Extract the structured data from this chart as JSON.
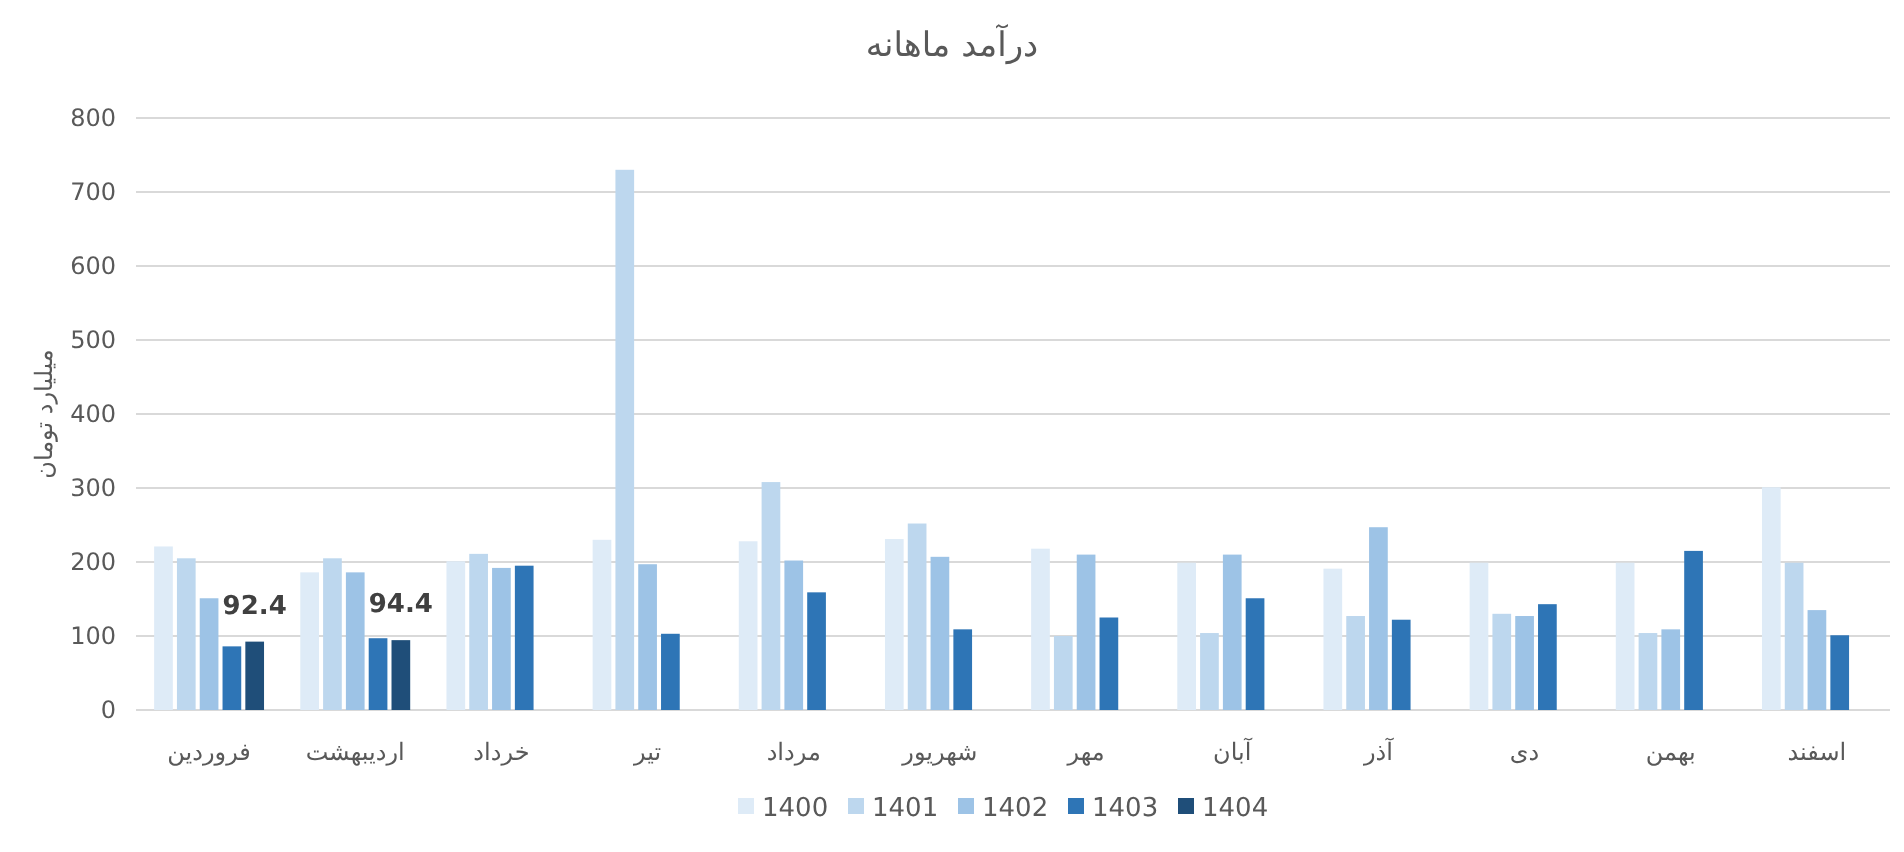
{
  "chart_data": {
    "type": "bar",
    "title": "درآمد ماهانه",
    "ylabel": "میلیارد تومان",
    "categories": [
      "فروردین",
      "اردیبهشت",
      "خرداد",
      "تیر",
      "مرداد",
      "شهریور",
      "مهر",
      "آبان",
      "آذر",
      "دی",
      "بهمن",
      "اسفند"
    ],
    "series": [
      {
        "name": "1400",
        "color": "#deebf7",
        "values": [
          221,
          186,
          201,
          230,
          228,
          231,
          218,
          199,
          191,
          199,
          199,
          301
        ]
      },
      {
        "name": "1401",
        "color": "#bdd7ee",
        "values": [
          205,
          205,
          211,
          730,
          308,
          252,
          100,
          104,
          127,
          130,
          104,
          199
        ]
      },
      {
        "name": "1402",
        "color": "#9dc3e6",
        "values": [
          151,
          186,
          192,
          197,
          202,
          207,
          210,
          210,
          247,
          127,
          109,
          135
        ]
      },
      {
        "name": "1403",
        "color": "#2e75b6",
        "values": [
          86,
          97,
          195,
          103,
          159,
          109,
          125,
          151,
          122,
          143,
          215,
          101
        ]
      },
      {
        "name": "1404",
        "color": "#1f4e79",
        "values": [
          92.4,
          94.4,
          null,
          null,
          null,
          null,
          null,
          null,
          null,
          null,
          null,
          null
        ],
        "value_labels": [
          "92.4",
          "94.4",
          null,
          null,
          null,
          null,
          null,
          null,
          null,
          null,
          null,
          null
        ]
      }
    ],
    "ylim": [
      0,
      800
    ],
    "yticks": [
      0,
      100,
      200,
      300,
      400,
      500,
      600,
      700,
      800
    ],
    "grid": "y",
    "legend": "bottom"
  }
}
